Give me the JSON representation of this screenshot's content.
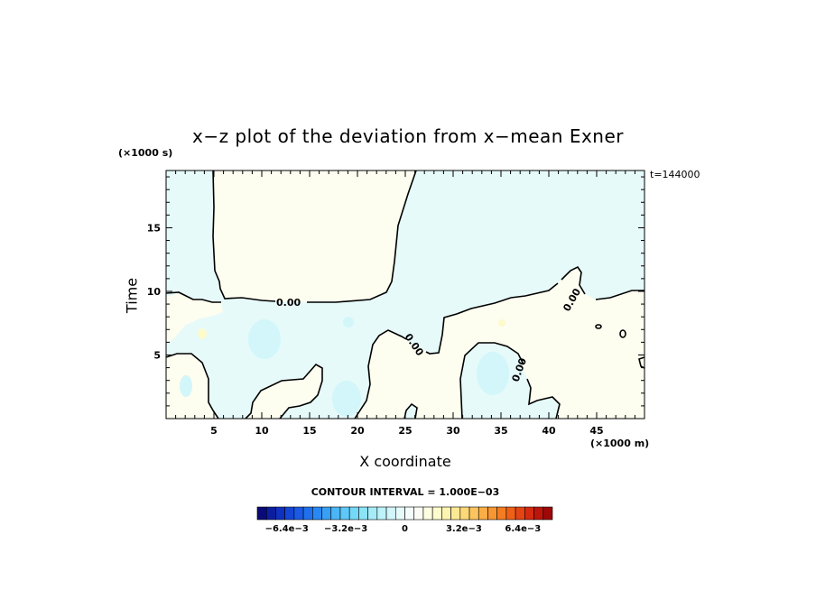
{
  "chart_data": {
    "type": "heatmap",
    "title": "x−z plot of the deviation from x−mean Exner",
    "xlabel": "X coordinate",
    "ylabel": "Time",
    "x_unit": "(×1000 m)",
    "y_unit": "(×1000 s)",
    "time_label": "t=144000",
    "xlim": [
      0,
      50
    ],
    "ylim": [
      0,
      19.5
    ],
    "x_ticks": [
      5,
      10,
      15,
      20,
      25,
      30,
      35,
      40,
      45
    ],
    "y_ticks": [
      5,
      10,
      15
    ],
    "contour_label": "0.00",
    "contour_interval_text": "CONTOUR INTERVAL = 1.000E−03",
    "colorbar": {
      "range": [
        -0.008,
        0.008
      ],
      "tick_labels": [
        "−6.4e−3",
        "−3.2e−3",
        "0",
        "3.2e−3",
        "6.4e−3"
      ],
      "tick_values": [
        -0.0064,
        -0.0032,
        0,
        0.0032,
        0.0064
      ],
      "colors": [
        "#0a0a78",
        "#0c1e9e",
        "#1030c0",
        "#1446d6",
        "#1a5ae4",
        "#2070ee",
        "#2a88f2",
        "#38a0f4",
        "#4ab6f6",
        "#5ec8f8",
        "#74d8f8",
        "#8ce4f8",
        "#a4ecf8",
        "#bcf2fa",
        "#d2f6fa",
        "#e6fafa",
        "#f4fcfc",
        "#fbfdf4",
        "#fdfde2",
        "#fdfbcc",
        "#fdf4b0",
        "#fde894",
        "#fdd878",
        "#fcc45e",
        "#fbae46",
        "#f89632",
        "#f47c22",
        "#ee6018",
        "#e44414",
        "#d42a10",
        "#bc160c",
        "#9e0808"
      ]
    },
    "regions": [
      {
        "name": "upper-negative",
        "sign": "negative",
        "color": "#e6fafa"
      },
      {
        "name": "positive",
        "sign": "positive",
        "color": "#fdfdf0"
      }
    ]
  }
}
